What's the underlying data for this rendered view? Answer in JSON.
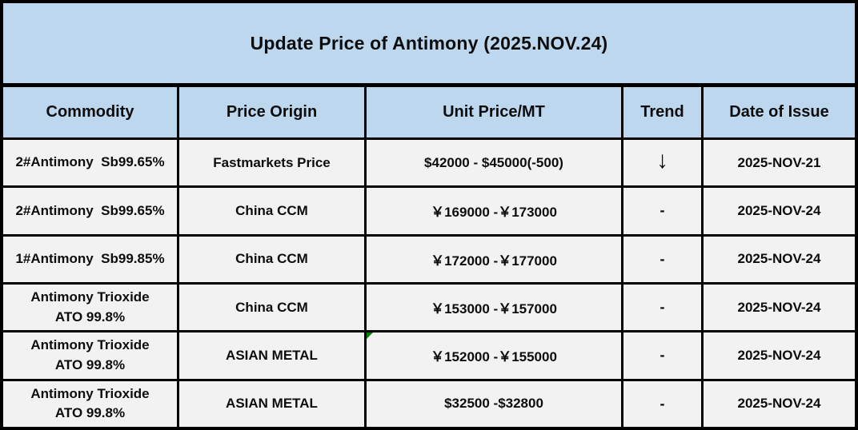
{
  "title": "Update Price of Antimony (2025.NOV.24)",
  "columns": [
    "Commodity",
    "Price Origin",
    "Unit Price/MT",
    "Trend",
    "Date of Issue"
  ],
  "rows": [
    {
      "commodity": "2#Antimony  Sb99.65%",
      "origin": "Fastmarkets Price",
      "price": "$42000 - $45000(-500)",
      "trend": "↓",
      "date": "2025-NOV-21"
    },
    {
      "commodity": "2#Antimony  Sb99.65%",
      "origin": "China CCM",
      "price": "￥169000 -￥173000",
      "trend": "-",
      "date": "2025-NOV-24"
    },
    {
      "commodity": "1#Antimony  Sb99.85%",
      "origin": "China CCM",
      "price": "￥172000 -￥177000",
      "trend": "-",
      "date": "2025-NOV-24"
    },
    {
      "commodity": "Antimony Trioxide\nATO 99.8%",
      "origin": "China CCM",
      "price": "￥153000 -￥157000",
      "trend": "-",
      "date": "2025-NOV-24"
    },
    {
      "commodity": "Antimony Trioxide\nATO 99.8%",
      "origin": "ASIAN METAL",
      "price": "￥152000 -￥155000",
      "trend": "-",
      "date": "2025-NOV-24"
    },
    {
      "commodity": "Antimony Trioxide\nATO 99.8%",
      "origin": "ASIAN METAL",
      "price": "$32500 -$32800",
      "trend": "-",
      "date": "2025-NOV-24"
    }
  ],
  "colors": {
    "title_header_bg": "#BDD7EE",
    "data_row_bg": "#F2F2F2",
    "grid_border": "#000000",
    "corner_marker_green": "#0B7D0B"
  }
}
